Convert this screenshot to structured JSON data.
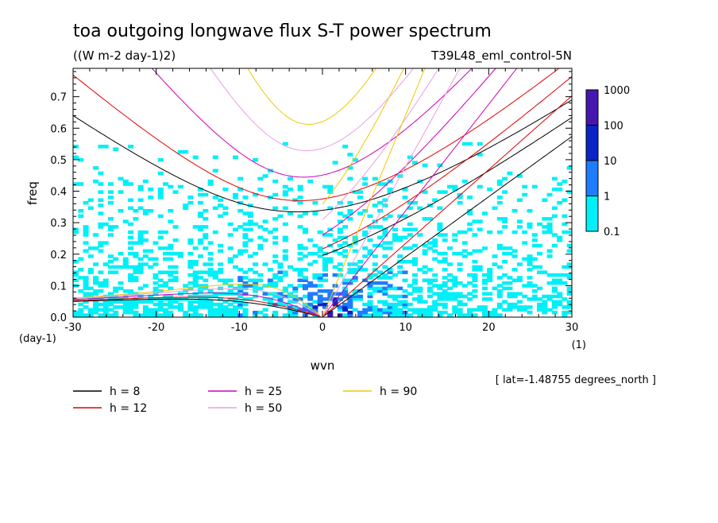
{
  "chart_data": {
    "type": "heatmap",
    "title": "toa outgoing longwave flux S-T power spectrum",
    "subtitle": "((W m-2 day-1)2)",
    "run_name": "T39L48_eml_control-5N",
    "xlabel": "wvn",
    "ylabel": "freq",
    "x_unit": "(1)",
    "y_unit": "(day-1)",
    "xlim": [
      -30,
      30
    ],
    "ylim": [
      0,
      0.79
    ],
    "x_ticks": [
      "-30",
      "-20",
      "-10",
      "0",
      "10",
      "20",
      "30"
    ],
    "y_ticks": [
      "0.0",
      "0.1",
      "0.2",
      "0.3",
      "0.4",
      "0.5",
      "0.6",
      "0.7"
    ],
    "footnote": "[ lat=-1.48755 degrees_north ]",
    "colorbar": {
      "levels": [
        "0.1",
        "1",
        "10",
        "100",
        "1000"
      ],
      "colors": [
        "#00f0f8",
        "#1f7cff",
        "#0b24c8",
        "#4616b0"
      ]
    },
    "dispersion_curves": [
      {
        "label": "h =  8",
        "h": 8,
        "color": "#000000"
      },
      {
        "label": "h = 12",
        "h": 12,
        "color": "#e00000"
      },
      {
        "label": "h = 25",
        "h": 25,
        "color": "#d000b0"
      },
      {
        "label": "h = 50",
        "h": 50,
        "color": "#e8a0e0"
      },
      {
        "label": "h = 90",
        "h": 90,
        "color": "#f0c800"
      }
    ]
  }
}
